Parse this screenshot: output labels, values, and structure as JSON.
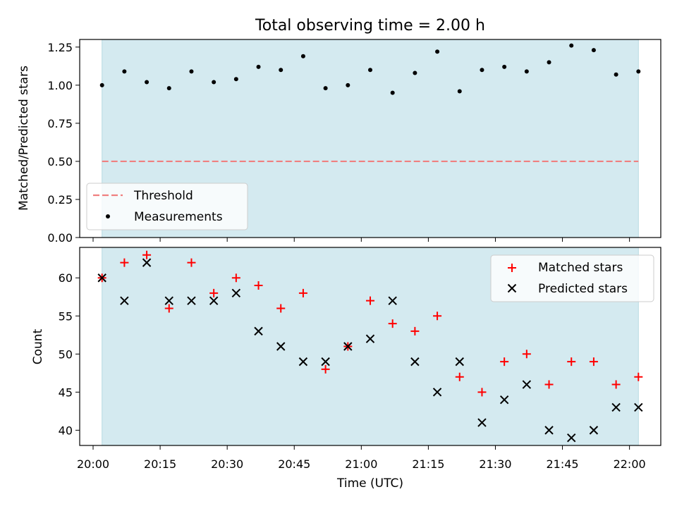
{
  "title": "Total observing time = 2.00 h",
  "colors": {
    "band": "#d4eaf0",
    "band_edge": "#b9dbe3",
    "threshold": "#f08080",
    "measurement": "#000000",
    "matched": "#ff0000",
    "predicted": "#000000"
  },
  "chart_data": [
    {
      "type": "scatter",
      "ylabel": "Matched/Predicted stars",
      "ylim": [
        0.0,
        1.3
      ],
      "yticks": [
        0.0,
        0.25,
        0.5,
        0.75,
        1.0,
        1.25
      ],
      "ytick_labels": [
        "0.00",
        "0.25",
        "0.50",
        "0.75",
        "1.00",
        "1.25"
      ],
      "shaded_span": [
        "20:02",
        "22:02"
      ],
      "threshold": 0.5,
      "legend": [
        "Threshold",
        "Measurements"
      ],
      "legend_position": "lower-left",
      "x": [
        "20:02",
        "20:07",
        "20:12",
        "20:17",
        "20:22",
        "20:27",
        "20:32",
        "20:37",
        "20:42",
        "20:47",
        "20:52",
        "20:57",
        "21:02",
        "21:07",
        "21:12",
        "21:17",
        "21:22",
        "21:27",
        "21:32",
        "21:37",
        "21:42",
        "21:47",
        "21:52",
        "21:57",
        "22:02"
      ],
      "series": [
        {
          "name": "Measurements",
          "values": [
            1.0,
            1.09,
            1.02,
            0.98,
            1.09,
            1.02,
            1.04,
            1.12,
            1.1,
            1.19,
            0.98,
            1.0,
            1.1,
            0.95,
            1.08,
            1.22,
            0.96,
            1.1,
            1.12,
            1.09,
            1.15,
            1.26,
            1.23,
            1.07,
            1.09
          ]
        }
      ]
    },
    {
      "type": "scatter",
      "xlabel": "Time (UTC)",
      "ylabel": "Count",
      "ylim": [
        38,
        64
      ],
      "yticks": [
        40,
        45,
        50,
        55,
        60
      ],
      "xlim": [
        "19:57",
        "22:07"
      ],
      "xticks": [
        "20:00",
        "20:15",
        "20:30",
        "20:45",
        "21:00",
        "21:15",
        "21:30",
        "21:45",
        "22:00"
      ],
      "shaded_span": [
        "20:02",
        "22:02"
      ],
      "legend_position": "upper-right",
      "x": [
        "20:02",
        "20:07",
        "20:12",
        "20:17",
        "20:22",
        "20:27",
        "20:32",
        "20:37",
        "20:42",
        "20:47",
        "20:52",
        "20:57",
        "21:02",
        "21:07",
        "21:12",
        "21:17",
        "21:22",
        "21:27",
        "21:32",
        "21:37",
        "21:42",
        "21:47",
        "21:52",
        "21:57",
        "22:02"
      ],
      "series": [
        {
          "name": "Matched stars",
          "values": [
            60,
            62,
            63,
            56,
            62,
            58,
            60,
            59,
            56,
            58,
            48,
            51,
            57,
            54,
            53,
            55,
            47,
            45,
            49,
            50,
            46,
            49,
            49,
            46,
            47
          ]
        },
        {
          "name": "Predicted stars",
          "values": [
            60,
            57,
            62,
            57,
            57,
            57,
            58,
            53,
            51,
            49,
            49,
            51,
            52,
            57,
            49,
            45,
            49,
            41,
            44,
            46,
            40,
            39,
            40,
            43,
            43
          ]
        }
      ]
    }
  ]
}
